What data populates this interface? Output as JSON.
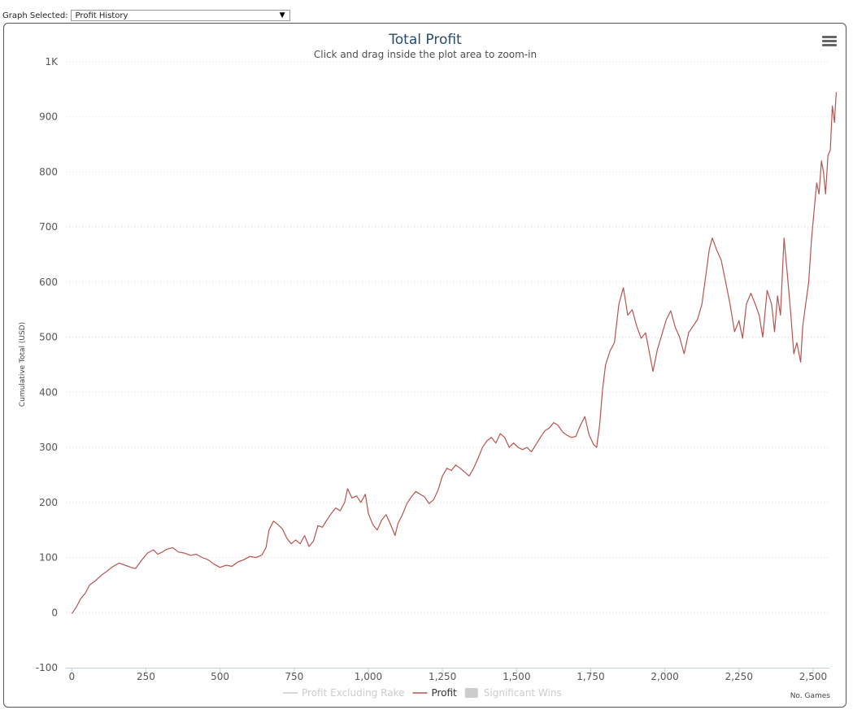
{
  "selector": {
    "label": "Graph Selected:",
    "value": "Profit History"
  },
  "chart_data": {
    "type": "line",
    "title": "Total Profit",
    "subtitle": "Click and drag inside the plot area to zoom-in",
    "xlabel": "No. Games",
    "ylabel": "Cumulative Total (USD)",
    "xlim": [
      -20,
      2555
    ],
    "ylim": [
      -100,
      1000
    ],
    "x_ticks": [
      {
        "value": 0,
        "label": "0"
      },
      {
        "value": 250,
        "label": "250"
      },
      {
        "value": 500,
        "label": "500"
      },
      {
        "value": 750,
        "label": "750"
      },
      {
        "value": 1000,
        "label": "1,000"
      },
      {
        "value": 1250,
        "label": "1,250"
      },
      {
        "value": 1500,
        "label": "1,500"
      },
      {
        "value": 1750,
        "label": "1,750"
      },
      {
        "value": 2000,
        "label": "2,000"
      },
      {
        "value": 2250,
        "label": "2,250"
      },
      {
        "value": 2500,
        "label": "2,500"
      }
    ],
    "y_ticks": [
      {
        "value": -100,
        "label": "-100"
      },
      {
        "value": 0,
        "label": "0"
      },
      {
        "value": 100,
        "label": "100"
      },
      {
        "value": 200,
        "label": "200"
      },
      {
        "value": 300,
        "label": "300"
      },
      {
        "value": 400,
        "label": "400"
      },
      {
        "value": 500,
        "label": "500"
      },
      {
        "value": 600,
        "label": "600"
      },
      {
        "value": 700,
        "label": "700"
      },
      {
        "value": 800,
        "label": "800"
      },
      {
        "value": 900,
        "label": "900"
      },
      {
        "value": 1000,
        "label": "1K"
      }
    ],
    "grid": true,
    "legend_position": "bottom-center",
    "series": [
      {
        "name": "Profit Excluding Rake",
        "color": "#cccccc",
        "visible": false,
        "points": []
      },
      {
        "name": "Profit",
        "color": "#b85450",
        "visible": true,
        "points": [
          [
            0,
            -2
          ],
          [
            15,
            10
          ],
          [
            30,
            25
          ],
          [
            45,
            35
          ],
          [
            60,
            50
          ],
          [
            80,
            58
          ],
          [
            100,
            68
          ],
          [
            120,
            76
          ],
          [
            140,
            84
          ],
          [
            160,
            90
          ],
          [
            180,
            86
          ],
          [
            200,
            82
          ],
          [
            215,
            80
          ],
          [
            235,
            95
          ],
          [
            255,
            108
          ],
          [
            275,
            114
          ],
          [
            290,
            106
          ],
          [
            305,
            110
          ],
          [
            320,
            115
          ],
          [
            340,
            118
          ],
          [
            360,
            110
          ],
          [
            380,
            108
          ],
          [
            400,
            104
          ],
          [
            420,
            106
          ],
          [
            440,
            100
          ],
          [
            460,
            96
          ],
          [
            480,
            88
          ],
          [
            500,
            82
          ],
          [
            520,
            86
          ],
          [
            540,
            84
          ],
          [
            560,
            92
          ],
          [
            580,
            96
          ],
          [
            600,
            102
          ],
          [
            620,
            100
          ],
          [
            640,
            104
          ],
          [
            655,
            118
          ],
          [
            665,
            150
          ],
          [
            680,
            166
          ],
          [
            695,
            160
          ],
          [
            710,
            152
          ],
          [
            725,
            135
          ],
          [
            740,
            125
          ],
          [
            755,
            132
          ],
          [
            770,
            125
          ],
          [
            785,
            140
          ],
          [
            800,
            120
          ],
          [
            815,
            130
          ],
          [
            830,
            158
          ],
          [
            845,
            155
          ],
          [
            860,
            168
          ],
          [
            875,
            180
          ],
          [
            890,
            190
          ],
          [
            905,
            185
          ],
          [
            920,
            200
          ],
          [
            930,
            225
          ],
          [
            945,
            208
          ],
          [
            960,
            212
          ],
          [
            975,
            200
          ],
          [
            990,
            215
          ],
          [
            1000,
            180
          ],
          [
            1015,
            160
          ],
          [
            1030,
            150
          ],
          [
            1045,
            168
          ],
          [
            1060,
            178
          ],
          [
            1075,
            160
          ],
          [
            1090,
            140
          ],
          [
            1100,
            162
          ],
          [
            1115,
            178
          ],
          [
            1130,
            198
          ],
          [
            1145,
            210
          ],
          [
            1160,
            220
          ],
          [
            1175,
            215
          ],
          [
            1190,
            210
          ],
          [
            1205,
            198
          ],
          [
            1220,
            205
          ],
          [
            1235,
            222
          ],
          [
            1250,
            248
          ],
          [
            1265,
            262
          ],
          [
            1280,
            258
          ],
          [
            1295,
            268
          ],
          [
            1310,
            262
          ],
          [
            1325,
            255
          ],
          [
            1340,
            248
          ],
          [
            1355,
            262
          ],
          [
            1370,
            280
          ],
          [
            1385,
            300
          ],
          [
            1400,
            312
          ],
          [
            1415,
            318
          ],
          [
            1430,
            308
          ],
          [
            1445,
            325
          ],
          [
            1460,
            318
          ],
          [
            1475,
            300
          ],
          [
            1490,
            308
          ],
          [
            1505,
            300
          ],
          [
            1520,
            296
          ],
          [
            1535,
            300
          ],
          [
            1550,
            292
          ],
          [
            1565,
            305
          ],
          [
            1580,
            318
          ],
          [
            1595,
            330
          ],
          [
            1610,
            335
          ],
          [
            1625,
            345
          ],
          [
            1640,
            340
          ],
          [
            1655,
            328
          ],
          [
            1670,
            322
          ],
          [
            1685,
            318
          ],
          [
            1700,
            320
          ],
          [
            1715,
            340
          ],
          [
            1730,
            356
          ],
          [
            1745,
            322
          ],
          [
            1760,
            305
          ],
          [
            1770,
            300
          ],
          [
            1780,
            340
          ],
          [
            1790,
            405
          ],
          [
            1800,
            450
          ],
          [
            1815,
            475
          ],
          [
            1830,
            490
          ],
          [
            1845,
            560
          ],
          [
            1860,
            590
          ],
          [
            1875,
            540
          ],
          [
            1890,
            550
          ],
          [
            1905,
            520
          ],
          [
            1920,
            498
          ],
          [
            1935,
            508
          ],
          [
            1945,
            480
          ],
          [
            1960,
            438
          ],
          [
            1975,
            478
          ],
          [
            1990,
            505
          ],
          [
            2005,
            532
          ],
          [
            2020,
            548
          ],
          [
            2035,
            518
          ],
          [
            2050,
            500
          ],
          [
            2065,
            470
          ],
          [
            2080,
            508
          ],
          [
            2095,
            520
          ],
          [
            2110,
            532
          ],
          [
            2125,
            560
          ],
          [
            2140,
            620
          ],
          [
            2150,
            660
          ],
          [
            2160,
            680
          ],
          [
            2175,
            658
          ],
          [
            2190,
            640
          ],
          [
            2205,
            600
          ],
          [
            2220,
            560
          ],
          [
            2235,
            510
          ],
          [
            2250,
            530
          ],
          [
            2262,
            498
          ],
          [
            2275,
            560
          ],
          [
            2290,
            580
          ],
          [
            2305,
            560
          ],
          [
            2318,
            540
          ],
          [
            2330,
            500
          ],
          [
            2345,
            585
          ],
          [
            2360,
            560
          ],
          [
            2370,
            510
          ],
          [
            2380,
            575
          ],
          [
            2390,
            540
          ],
          [
            2402,
            680
          ],
          [
            2412,
            620
          ],
          [
            2425,
            540
          ],
          [
            2435,
            470
          ],
          [
            2445,
            490
          ],
          [
            2458,
            455
          ],
          [
            2465,
            520
          ],
          [
            2475,
            560
          ],
          [
            2485,
            600
          ],
          [
            2495,
            680
          ],
          [
            2505,
            740
          ],
          [
            2512,
            780
          ],
          [
            2520,
            760
          ],
          [
            2528,
            820
          ],
          [
            2535,
            800
          ],
          [
            2542,
            760
          ],
          [
            2550,
            830
          ],
          [
            2558,
            840
          ],
          [
            2565,
            920
          ],
          [
            2572,
            890
          ],
          [
            2578,
            945
          ]
        ]
      },
      {
        "name": "Significant Wins",
        "color": "#cccccc",
        "visible": false,
        "points": []
      }
    ]
  }
}
